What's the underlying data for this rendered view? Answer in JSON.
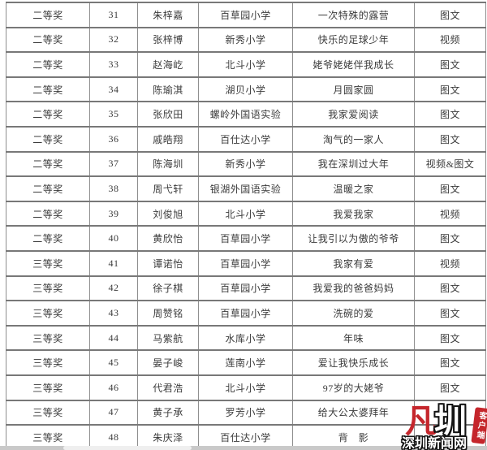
{
  "table": {
    "columns": [
      "award",
      "number",
      "name",
      "school",
      "work-title",
      "category"
    ],
    "rows": [
      [
        "二等奖",
        "31",
        "朱梓嘉",
        "百草园小学",
        "一次特殊的露营",
        "图文"
      ],
      [
        "二等奖",
        "32",
        "张梓博",
        "新秀小学",
        "快乐的足球少年",
        "视频"
      ],
      [
        "二等奖",
        "33",
        "赵海屹",
        "北斗小学",
        "姥爷姥姥伴我成长",
        "图文"
      ],
      [
        "二等奖",
        "34",
        "陈瑜淇",
        "湖贝小学",
        "月圆家圆",
        "图文"
      ],
      [
        "二等奖",
        "35",
        "张欣田",
        "螺岭外国语实验",
        "我家爱阅读",
        "图文"
      ],
      [
        "二等奖",
        "36",
        "戚皓翔",
        "百仕达小学",
        "淘气的一家人",
        "图文"
      ],
      [
        "二等奖",
        "37",
        "陈海圳",
        "新秀小学",
        "我在深圳过大年",
        "视频&图文"
      ],
      [
        "二等奖",
        "38",
        "周弋轩",
        "银湖外国语实验",
        "温暖之家",
        "图文"
      ],
      [
        "二等奖",
        "39",
        "刘俊旭",
        "北斗小学",
        "我爱我家",
        "视频"
      ],
      [
        "二等奖",
        "40",
        "黄欣怡",
        "百草园小学",
        "让我引以为傲的爷爷",
        "图文"
      ],
      [
        "三等奖",
        "41",
        "谭诺怡",
        "百草园小学",
        "我家有爱",
        "视频"
      ],
      [
        "三等奖",
        "42",
        "徐子棋",
        "百草园小学",
        "我爱我的爸爸妈妈",
        "图文"
      ],
      [
        "三等奖",
        "43",
        "周赞铭",
        "百草园小学",
        "洗碗的爱",
        "图文"
      ],
      [
        "三等奖",
        "44",
        "马紫航",
        "水库小学",
        "年味",
        "图文"
      ],
      [
        "三等奖",
        "45",
        "晏子峻",
        "莲南小学",
        "爱让我快乐成长",
        "图文"
      ],
      [
        "三等奖",
        "46",
        "代君浩",
        "北斗小学",
        "97岁的大姥爷",
        "图文"
      ],
      [
        "三等奖",
        "47",
        "黄子承",
        "罗芳小学",
        "给大公太婆拜年",
        ""
      ],
      [
        "三等奖",
        "48",
        "朱庆泽",
        "百仕达小学",
        "背　影",
        ""
      ]
    ]
  },
  "watermark": {
    "mark_glyph": "凡",
    "brand_glyph": "圳",
    "client_label": "客户端",
    "site_name": "深圳新闻网",
    "brand_red": "#c5262c"
  }
}
